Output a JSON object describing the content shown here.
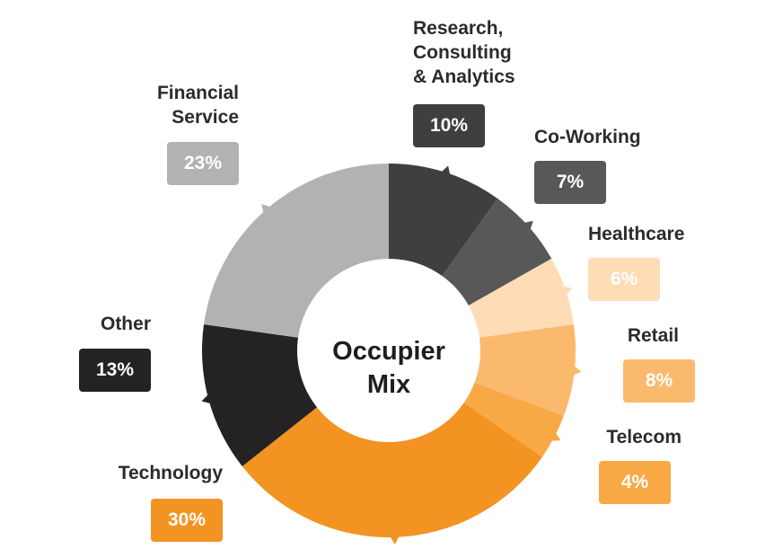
{
  "chart_data": {
    "type": "pie",
    "title": "Occupier\nMix",
    "series": [
      {
        "name": "Research,\nConsulting\n& Analytics",
        "value": 10,
        "display": "10%",
        "color": "#3f3f41",
        "badge_text": "#ffffff"
      },
      {
        "name": "Co-Working",
        "value": 7,
        "display": "7%",
        "color": "#58585a",
        "badge_text": "#ffffff"
      },
      {
        "name": "Healthcare",
        "value": 6,
        "display": "6%",
        "color": "#fddcb6",
        "badge_text": "#ffffff"
      },
      {
        "name": "Retail",
        "value": 8,
        "display": "8%",
        "color": "#fbb96e",
        "badge_text": "#ffffff"
      },
      {
        "name": "Telecom",
        "value": 4,
        "display": "4%",
        "color": "#f9a846",
        "badge_text": "#ffffff"
      },
      {
        "name": "Technology",
        "value": 30,
        "display": "30%",
        "color": "#f39322",
        "badge_text": "#ffffff"
      },
      {
        "name": "Other",
        "value": 13,
        "display": "13%",
        "color": "#242223",
        "badge_text": "#ffffff"
      },
      {
        "name": "Financial\nService",
        "value": 23,
        "display": "23%",
        "color": "#b2b2b2",
        "badge_text": "#ffffff"
      }
    ],
    "start_angle_deg": 0,
    "direction": "clockwise",
    "hole_ratio": 0.49
  }
}
